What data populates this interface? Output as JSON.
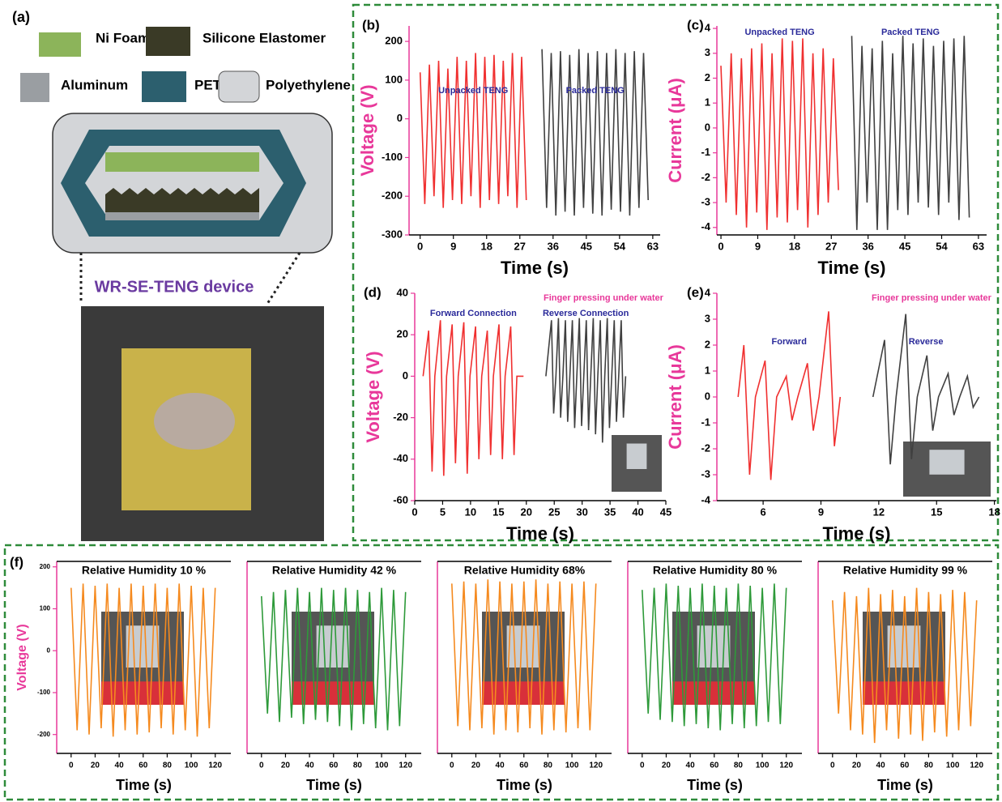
{
  "diagram": {
    "panel_label": "(a)",
    "legend": [
      {
        "label": "Ni Foam",
        "color": "#8cb45a"
      },
      {
        "label": "Silicone Elastomer",
        "color": "#3a3a26"
      },
      {
        "label": "Aluminum",
        "color": "#9a9ea2"
      },
      {
        "label": "PET",
        "color": "#2c5f6e"
      },
      {
        "label": "Polyethylene",
        "color": "#d3d5d8"
      }
    ],
    "device_label": "WR-SE-TENG device"
  },
  "chart_data": [
    {
      "type": "line",
      "panel_label": "(b)",
      "xlabel": "Time (s)",
      "ylabel": "Voltage (V)",
      "xlim": [
        -3,
        65
      ],
      "ylim": [
        -300,
        240
      ],
      "xticks": [
        0,
        9,
        18,
        27,
        36,
        45,
        54,
        63
      ],
      "yticks": [
        -300,
        -200,
        -100,
        0,
        100,
        200
      ],
      "series": [
        {
          "name": "Unpacked TENG",
          "color": "#f03030",
          "x": [
            0,
            1.25,
            2.5,
            3.75,
            5,
            6.25,
            7.5,
            8.75,
            10,
            11.25,
            12.5,
            13.75,
            15,
            16.25,
            17.5,
            18.75,
            20,
            21.25,
            22.5,
            23.75,
            25,
            26.25,
            27.5,
            28.75
          ],
          "values": [
            120,
            -220,
            140,
            -200,
            150,
            -230,
            130,
            -210,
            160,
            -220,
            150,
            -200,
            170,
            -230,
            160,
            -210,
            165,
            -220,
            150,
            -200,
            170,
            -230,
            160,
            -210
          ]
        },
        {
          "name": "Packed TENG",
          "color": "#404040",
          "x": [
            33,
            34.25,
            35.5,
            36.75,
            38,
            39.25,
            40.5,
            41.75,
            43,
            44.25,
            45.5,
            46.75,
            48,
            49.25,
            50.5,
            51.75,
            53,
            54.25,
            55.5,
            56.75,
            58,
            59.25,
            60.5,
            61.75
          ],
          "values": [
            180,
            -230,
            170,
            -250,
            175,
            -240,
            165,
            -250,
            180,
            -230,
            170,
            -245,
            175,
            -250,
            170,
            -235,
            180,
            -240,
            170,
            -250,
            175,
            -230,
            170,
            -210
          ]
        }
      ]
    },
    {
      "type": "line",
      "panel_label": "(c)",
      "xlabel": "Time (s)",
      "ylabel": "Current (μA)",
      "xlim": [
        -1,
        65
      ],
      "ylim": [
        -4.3,
        4.1
      ],
      "xticks": [
        0,
        9,
        18,
        27,
        36,
        45,
        54,
        63
      ],
      "yticks": [
        -4,
        -3,
        -2,
        -1,
        0,
        1,
        2,
        3,
        4
      ],
      "series": [
        {
          "name": "Unpacked TENG",
          "color": "#f03030",
          "x": [
            0,
            1.25,
            2.5,
            3.75,
            5,
            6.25,
            7.5,
            8.75,
            10,
            11.25,
            12.5,
            13.75,
            15,
            16.25,
            17.5,
            18.75,
            20,
            21.25,
            22.5,
            23.75,
            25,
            26.25,
            27.5,
            28.75
          ],
          "values": [
            2.5,
            -3,
            3,
            -3.5,
            2.8,
            -4,
            3.2,
            -3.4,
            3.4,
            -4.1,
            3,
            -3.6,
            3.6,
            -3.8,
            3.5,
            -3.3,
            3.6,
            -4,
            3,
            -3.5,
            3.2,
            -3,
            2.8,
            -2.5
          ]
        },
        {
          "name": "Packed TENG",
          "color": "#404040",
          "x": [
            32,
            33.25,
            34.5,
            35.75,
            37,
            38.25,
            39.5,
            40.75,
            42,
            43.25,
            44.5,
            45.75,
            47,
            48.25,
            49.5,
            50.75,
            52,
            53.25,
            54.5,
            55.75,
            57,
            58.25,
            59.5,
            60.75
          ],
          "values": [
            3.7,
            -4.1,
            3.3,
            -3,
            3.2,
            -4.1,
            3.5,
            -4.1,
            3,
            -3.3,
            3.7,
            -3.5,
            3.4,
            -3,
            3.6,
            -3.2,
            3.3,
            -3.5,
            3.5,
            -3,
            3.6,
            -3.7,
            3.7,
            -3.6
          ]
        }
      ]
    },
    {
      "type": "line",
      "panel_label": "(d)",
      "xlabel": "Time (s)",
      "ylabel": "Voltage (V)",
      "annotation": "Finger pressing under water",
      "xlim": [
        0,
        45
      ],
      "ylim": [
        -60,
        40
      ],
      "xticks": [
        0,
        5,
        10,
        15,
        20,
        25,
        30,
        35,
        40,
        45
      ],
      "yticks": [
        -60,
        -40,
        -20,
        0,
        20,
        40
      ],
      "series": [
        {
          "name": "Forward Connection",
          "color": "#f03030",
          "x": [
            1.5,
            2.5,
            3.1,
            3.6,
            4.6,
            5.2,
            5.7,
            6.7,
            7.3,
            7.8,
            8.8,
            9.4,
            9.9,
            10.9,
            11.5,
            12.0,
            13.0,
            13.6,
            14.1,
            15.1,
            15.7,
            16.2,
            17.2,
            17.8,
            18.3,
            19.5
          ],
          "values": [
            0,
            22,
            -46,
            0,
            27,
            -48,
            0,
            25,
            -42,
            0,
            26,
            -47,
            0,
            24,
            -40,
            0,
            22,
            -38,
            0,
            25,
            -40,
            0,
            24,
            -38,
            0,
            0
          ]
        },
        {
          "name": "Reverse Connection",
          "color": "#404040",
          "x": [
            23.5,
            24.5,
            24.9,
            25.3,
            25.75,
            26.15,
            26.55,
            27,
            27.4,
            27.8,
            28.25,
            28.65,
            29.05,
            29.5,
            29.9,
            30.3,
            30.75,
            31.15,
            31.55,
            32,
            32.4,
            32.8,
            33.25,
            33.65,
            34.05,
            34.5,
            34.9,
            35.3,
            35.75,
            36.15,
            36.55,
            37,
            37.4,
            37.8
          ],
          "values": [
            0,
            27,
            -18,
            0,
            28,
            -20,
            0,
            27,
            -22,
            0,
            27,
            -25,
            0,
            28,
            -24,
            0,
            27,
            -26,
            0,
            28,
            -28,
            0,
            27,
            -32,
            0,
            28,
            -25,
            0,
            27,
            -22,
            0,
            27,
            -20,
            0
          ]
        }
      ]
    },
    {
      "type": "line",
      "panel_label": "(e)",
      "xlabel": "Time (s)",
      "ylabel": "Current (μA)",
      "annotation": "Finger pressing under water",
      "xlim": [
        3.6,
        18.1
      ],
      "ylim": [
        -4,
        4
      ],
      "xticks": [
        6,
        9,
        12,
        15,
        18
      ],
      "yticks": [
        -4,
        -3,
        -2,
        -1,
        0,
        1,
        2,
        3,
        4
      ],
      "series": [
        {
          "name": "Forward",
          "color": "#f03030",
          "x": [
            4.7,
            5.0,
            5.3,
            5.6,
            6.1,
            6.4,
            6.7,
            7.2,
            7.5,
            7.8,
            8.3,
            8.6,
            8.9,
            9.4,
            9.7,
            10.0
          ],
          "values": [
            0,
            2.0,
            -3.0,
            0,
            1.4,
            -3.2,
            0,
            0.8,
            -0.9,
            0,
            1.3,
            -1.3,
            0,
            3.3,
            -1.9,
            0
          ]
        },
        {
          "name": "Reverse",
          "color": "#404040",
          "x": [
            11.7,
            12.3,
            12.6,
            12.9,
            13.4,
            13.7,
            14.0,
            14.5,
            14.8,
            15.1,
            15.6,
            15.9,
            16.2,
            16.6,
            16.9,
            17.2
          ],
          "values": [
            0,
            2.2,
            -2.6,
            0,
            3.2,
            -2.4,
            0,
            1.6,
            -1.3,
            0,
            0.9,
            -0.7,
            0,
            0.8,
            -0.4,
            0
          ]
        }
      ]
    },
    {
      "type": "line",
      "panel_label": "(f)",
      "title": "Relative Humidity 10 %",
      "xlabel": "Time (s)",
      "ylabel": "Voltage (V)",
      "color": "#f58a1f",
      "xlim": [
        -12,
        133
      ],
      "ylim": [
        -245,
        213
      ],
      "xticks": [
        0,
        20,
        40,
        60,
        80,
        100,
        120
      ],
      "yticks": [
        -200,
        -100,
        0,
        100,
        200
      ],
      "x": [
        0,
        5,
        10,
        15,
        20,
        25,
        30,
        35,
        40,
        45,
        50,
        55,
        60,
        65,
        70,
        75,
        80,
        85,
        90,
        95,
        100,
        105,
        110,
        115,
        120
      ],
      "values": [
        150,
        -190,
        160,
        -200,
        155,
        -185,
        160,
        -205,
        150,
        -190,
        160,
        -200,
        155,
        -195,
        160,
        -185,
        150,
        -200,
        160,
        -190,
        155,
        -205,
        150,
        -185,
        150
      ]
    },
    {
      "type": "line",
      "title": "Relative Humidity 42 %",
      "xlabel": "Time (s)",
      "color": "#2e9a3a",
      "xlim": [
        -12,
        133
      ],
      "ylim": [
        -245,
        213
      ],
      "xticks": [
        0,
        20,
        40,
        60,
        80,
        100,
        120
      ],
      "x": [
        0,
        5,
        10,
        15,
        20,
        25,
        30,
        35,
        40,
        45,
        50,
        55,
        60,
        65,
        70,
        75,
        80,
        85,
        90,
        95,
        100,
        105,
        110,
        115,
        120
      ],
      "values": [
        130,
        -150,
        140,
        -170,
        145,
        -160,
        150,
        -175,
        140,
        -165,
        150,
        -170,
        145,
        -180,
        150,
        -190,
        145,
        -175,
        140,
        -185,
        150,
        -190,
        145,
        -180,
        140
      ]
    },
    {
      "type": "line",
      "title": "Relative Humidity 68%",
      "xlabel": "Time (s)",
      "color": "#f58a1f",
      "xlim": [
        -12,
        133
      ],
      "ylim": [
        -245,
        213
      ],
      "xticks": [
        0,
        20,
        40,
        60,
        80,
        100,
        120
      ],
      "x": [
        0,
        5,
        10,
        15,
        20,
        25,
        30,
        35,
        40,
        45,
        50,
        55,
        60,
        65,
        70,
        75,
        80,
        85,
        90,
        95,
        100,
        105,
        110,
        115,
        120
      ],
      "values": [
        160,
        -180,
        165,
        -190,
        160,
        -185,
        170,
        -200,
        165,
        -190,
        160,
        -195,
        165,
        -185,
        170,
        -200,
        160,
        -190,
        165,
        -195,
        160,
        -185,
        165,
        -190,
        160
      ]
    },
    {
      "type": "line",
      "title": "Relative Humidity 80 %",
      "xlabel": "Time (s)",
      "color": "#2e9a3a",
      "xlim": [
        -12,
        133
      ],
      "ylim": [
        -245,
        213
      ],
      "xticks": [
        0,
        20,
        40,
        60,
        80,
        100,
        120
      ],
      "x": [
        0,
        5,
        10,
        15,
        20,
        25,
        30,
        35,
        40,
        45,
        50,
        55,
        60,
        65,
        70,
        75,
        80,
        85,
        90,
        95,
        100,
        105,
        110,
        115,
        120
      ],
      "values": [
        145,
        -150,
        150,
        -165,
        160,
        -170,
        155,
        -180,
        150,
        -175,
        160,
        -185,
        155,
        -190,
        150,
        -175,
        160,
        -185,
        155,
        -180,
        150,
        -170,
        160,
        -175,
        150
      ]
    },
    {
      "type": "line",
      "title": "Relative Humidity 99 %",
      "xlabel": "Time (s)",
      "color": "#f58a1f",
      "xlim": [
        -12,
        133
      ],
      "ylim": [
        -245,
        213
      ],
      "xticks": [
        0,
        20,
        40,
        60,
        80,
        100,
        120
      ],
      "x": [
        0,
        5,
        10,
        15,
        20,
        25,
        30,
        35,
        40,
        45,
        50,
        55,
        60,
        65,
        70,
        75,
        80,
        85,
        90,
        95,
        100,
        105,
        110,
        115,
        120
      ],
      "values": [
        120,
        -150,
        140,
        -190,
        130,
        -200,
        150,
        -220,
        135,
        -190,
        145,
        -210,
        130,
        -200,
        150,
        -215,
        140,
        -195,
        135,
        -205,
        145,
        -190,
        140,
        -180,
        120
      ]
    }
  ]
}
